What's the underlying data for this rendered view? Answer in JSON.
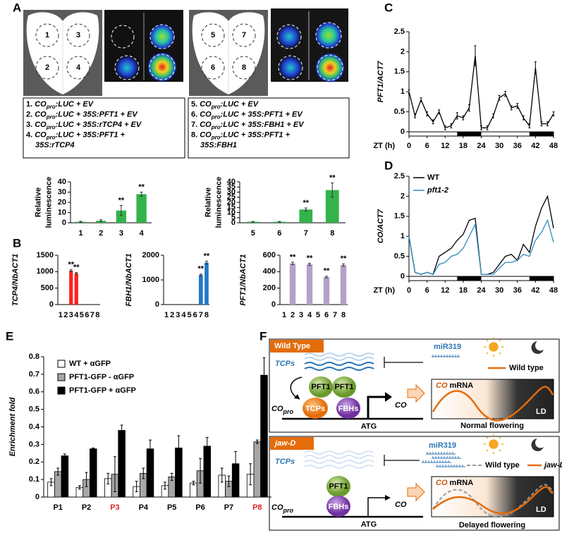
{
  "panel_labels": [
    "A",
    "B",
    "C",
    "D",
    "E",
    "F"
  ],
  "panel_a": {
    "leaf_numbers": [
      [
        "1",
        "3",
        "2",
        "4"
      ],
      [
        "5",
        "7",
        "6",
        "8"
      ]
    ],
    "constructs": [
      [
        {
          "number": "1.",
          "gene": "CO",
          "sub": "pro",
          "rest": ":LUC + EV"
        },
        {
          "number": "2.",
          "gene": "CO",
          "sub": "pro",
          "rest": ":LUC + 35S:PFT1 + EV"
        },
        {
          "number": "3.",
          "gene": "CO",
          "sub": "pro",
          "rest": ":LUC + 35S:rTCP4 + EV"
        },
        {
          "number": "4.",
          "gene": "CO",
          "sub": "pro",
          "rest": ":LUC + 35S:PFT1 +",
          "rest2": "35S:rTCP4"
        }
      ],
      [
        {
          "number": "5.",
          "gene": "CO",
          "sub": "pro",
          "rest": ":LUC + EV"
        },
        {
          "number": "6.",
          "gene": "CO",
          "sub": "pro",
          "rest": ":LUC + 35S:PFT1 + EV"
        },
        {
          "number": "7.",
          "gene": "CO",
          "sub": "pro",
          "rest": ":LUC + 35S:FBH1 + EV"
        },
        {
          "number": "8.",
          "gene": "CO",
          "sub": "pro",
          "rest": ":LUC + 35S:PFT1 +",
          "rest2": "35S:FBH1"
        }
      ]
    ]
  },
  "chart_data": [
    {
      "type": "bar",
      "ylabel": [
        "Relative",
        "luminescence"
      ],
      "categories": [
        "1",
        "2",
        "3",
        "4"
      ],
      "values": [
        1,
        2,
        12,
        28
      ],
      "errors": [
        0.5,
        1,
        5,
        2
      ],
      "significance": [
        null,
        null,
        "**",
        "**"
      ],
      "color": "#33b34a",
      "ylim": [
        0,
        40
      ],
      "yticks": [
        0,
        10,
        20,
        30,
        40
      ]
    },
    {
      "type": "bar",
      "ylabel": [
        "Relative",
        "luminescence"
      ],
      "categories": [
        "5",
        "6",
        "7",
        "8"
      ],
      "values": [
        1,
        1,
        13,
        32
      ],
      "errors": [
        0.3,
        0.3,
        1.5,
        7
      ],
      "significance": [
        null,
        null,
        "**",
        "**"
      ],
      "color": "#33b34a",
      "ylim": [
        0,
        40
      ],
      "yticks": [
        0,
        5,
        10,
        15,
        20,
        25,
        30,
        35,
        40
      ]
    },
    {
      "type": "bar",
      "ylabel": "TCP4/NbACT1",
      "categories": [
        "1",
        "2",
        "3",
        "4",
        "5",
        "6",
        "7",
        "8"
      ],
      "values": [
        null,
        null,
        1030,
        950,
        null,
        null,
        null,
        null
      ],
      "errors": [
        null,
        null,
        30,
        25,
        null,
        null,
        null,
        null
      ],
      "significance": [
        null,
        null,
        "**",
        "**",
        null,
        null,
        null,
        null
      ],
      "color": "#ff2020",
      "ylim": [
        0,
        1500
      ],
      "yticks": [
        0,
        500,
        1000,
        1500
      ]
    },
    {
      "type": "bar",
      "ylabel": "FBH1/NbACT1",
      "categories": [
        "1",
        "2",
        "3",
        "4",
        "5",
        "6",
        "7",
        "8"
      ],
      "values": [
        null,
        null,
        null,
        null,
        null,
        null,
        1200,
        1700
      ],
      "errors": [
        null,
        null,
        null,
        null,
        null,
        null,
        40,
        60
      ],
      "significance": [
        null,
        null,
        null,
        null,
        null,
        null,
        "**",
        "**"
      ],
      "color": "#1f7ac8",
      "ylim": [
        0,
        2000
      ],
      "yticks": [
        0,
        1000,
        2000
      ]
    },
    {
      "type": "bar",
      "ylabel": "PFT1/NbACT1",
      "categories": [
        "1",
        "2",
        "3",
        "4",
        "5",
        "6",
        "7",
        "8"
      ],
      "values": [
        null,
        500,
        null,
        490,
        null,
        335,
        null,
        480
      ],
      "errors": [
        null,
        15,
        null,
        12,
        null,
        10,
        null,
        15
      ],
      "significance": [
        null,
        "**",
        null,
        "**",
        null,
        "**",
        null,
        "**"
      ],
      "color": "#b3a2c7",
      "ylim": [
        0,
        600
      ],
      "yticks": [
        0,
        200,
        400,
        600
      ]
    },
    {
      "type": "line",
      "ylabel": "PFT1/ACT7",
      "xlabel": "ZT (h)",
      "x": [
        0,
        2,
        4,
        6,
        8,
        10,
        12,
        14,
        16,
        18,
        20,
        22,
        24,
        26,
        28,
        30,
        32,
        34,
        36,
        38,
        40,
        42,
        44,
        46,
        48
      ],
      "values": [
        1.0,
        0.4,
        0.8,
        0.45,
        0.25,
        0.5,
        0.1,
        0.15,
        0.4,
        0.35,
        0.6,
        1.9,
        0.1,
        0.1,
        0.4,
        0.85,
        0.95,
        0.6,
        0.65,
        0.35,
        0.15,
        1.6,
        0.2,
        0.2,
        0.45
      ],
      "errors": [
        0.05,
        0.05,
        0.05,
        0.05,
        0.05,
        0.05,
        0.05,
        0.05,
        0.08,
        0.05,
        0.08,
        0.25,
        0.05,
        0.05,
        0.05,
        0.06,
        0.06,
        0.05,
        0.06,
        0.05,
        0.05,
        0.15,
        0.05,
        0.05,
        0.05
      ],
      "color": "#000000",
      "xlim": [
        0,
        48
      ],
      "xticks": [
        0,
        6,
        12,
        18,
        24,
        30,
        36,
        42,
        48
      ],
      "ylim": [
        0,
        2.5
      ],
      "yticks": [
        0,
        0.5,
        1,
        1.5,
        2,
        2.5
      ],
      "dark_periods": [
        [
          16,
          24
        ],
        [
          40,
          48
        ]
      ]
    },
    {
      "type": "line",
      "ylabel": "CO/ACT7",
      "xlabel": "ZT (h)",
      "x": [
        0,
        2,
        4,
        6,
        8,
        10,
        12,
        14,
        16,
        18,
        20,
        22,
        24,
        26,
        28,
        30,
        32,
        34,
        36,
        38,
        40,
        42,
        44,
        46,
        48
      ],
      "series": [
        {
          "name": "WT",
          "color": "#000000",
          "values": [
            1.0,
            0.1,
            0.05,
            0.1,
            0.05,
            0.5,
            0.6,
            0.7,
            0.9,
            1.05,
            1.4,
            1.45,
            0.05,
            0.05,
            0.1,
            0.3,
            0.5,
            0.55,
            0.4,
            0.8,
            0.6,
            1.25,
            1.7,
            2.0,
            1.2
          ]
        },
        {
          "name": "pft1-2",
          "color": "#2e8bc0",
          "values": [
            1.0,
            0.1,
            0.05,
            0.1,
            0.05,
            0.3,
            0.35,
            0.5,
            0.55,
            0.7,
            1.0,
            1.3,
            0.05,
            0.05,
            0.05,
            0.2,
            0.35,
            0.35,
            0.4,
            0.55,
            0.5,
            0.9,
            1.1,
            1.4,
            0.85
          ]
        }
      ],
      "xlim": [
        0,
        48
      ],
      "xticks": [
        0,
        6,
        12,
        18,
        24,
        30,
        36,
        42,
        48
      ],
      "ylim": [
        0,
        2.5
      ],
      "yticks": [
        0,
        0.5,
        1,
        1.5,
        2,
        2.5
      ],
      "dark_periods": [
        [
          16,
          24
        ],
        [
          40,
          48
        ]
      ]
    },
    {
      "type": "bar",
      "ylabel": "Enrichment fold",
      "categories": [
        "P1",
        "P2",
        "P3",
        "P4",
        "P5",
        "P6",
        "P7",
        "P8"
      ],
      "category_colors": [
        "#000000",
        "#000000",
        "#e02020",
        "#000000",
        "#000000",
        "#000000",
        "#000000",
        "#e02020"
      ],
      "series": [
        {
          "name": "WT + αGFP",
          "color": "#ffffff",
          "values": [
            0.085,
            0.055,
            0.105,
            0.06,
            0.065,
            0.08,
            0.125,
            0.13
          ],
          "errors": [
            0.02,
            0.01,
            0.03,
            0.03,
            0.02,
            0.01,
            0.04,
            0.06
          ]
        },
        {
          "name": "PFT1-GFP - αGFP",
          "color": "#a6a6a6",
          "values": [
            0.145,
            0.1,
            0.13,
            0.135,
            0.115,
            0.15,
            0.09,
            0.315
          ],
          "errors": [
            0.02,
            0.04,
            0.1,
            0.03,
            0.02,
            0.07,
            0.03,
            0.01
          ]
        },
        {
          "name": "PFT1-GFP + αGFP",
          "color": "#000000",
          "values": [
            0.235,
            0.275,
            0.38,
            0.275,
            0.28,
            0.29,
            0.19,
            0.695
          ],
          "errors": [
            0.01,
            0.005,
            0.03,
            0.05,
            0.07,
            0.05,
            0.07,
            0.1
          ]
        }
      ],
      "ylim": [
        0,
        0.8
      ],
      "yticks": [
        0,
        0.1,
        0.2,
        0.3,
        0.4,
        0.5,
        0.6,
        0.7,
        0.8
      ]
    }
  ],
  "panel_f": {
    "wild_type": {
      "tab": "Wild Type",
      "mirna": "miR319",
      "tcps": "TCPs",
      "proteins": [
        "PFT1",
        "PFT1",
        "TCPs",
        "FBHs"
      ],
      "gene": "CO",
      "promoter": "CO",
      "promoter_sub": "pro",
      "atg": "ATG",
      "graph_gene": "CO",
      "graph_rest": " mRNA",
      "legend": [
        "Wild type"
      ],
      "photoperiod": "LD",
      "outcome": "Normal flowering"
    },
    "jaw_d": {
      "tab": "jaw-D",
      "mirna": "miR319",
      "tcps": "TCPs",
      "proteins": [
        "PFT1",
        "FBHs"
      ],
      "gene": "CO",
      "promoter": "CO",
      "promoter_sub": "pro",
      "atg": "ATG",
      "graph_gene": "CO",
      "graph_rest": " mRNA",
      "legend": [
        "Wild type",
        "jaw-D"
      ],
      "photoperiod": "LD",
      "outcome": "Delayed flowering"
    }
  }
}
